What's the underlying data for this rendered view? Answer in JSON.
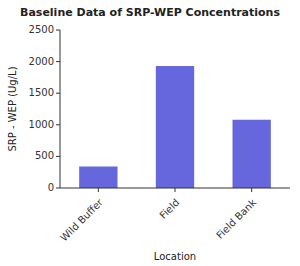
{
  "chart_data": {
    "type": "bar",
    "title": "Baseline Data of SRP-WEP Concentrations",
    "xlabel": "Location",
    "ylabel": "SRP - WEP (Ug/L)",
    "categories": [
      "Wild Buffer",
      "Field",
      "Field Bank"
    ],
    "values": [
      340,
      1930,
      1080
    ],
    "color": "#6666dd",
    "ylim": [
      0,
      2500
    ],
    "yticks": [
      0,
      500,
      1000,
      1500,
      2000,
      2500
    ],
    "grid": false
  }
}
